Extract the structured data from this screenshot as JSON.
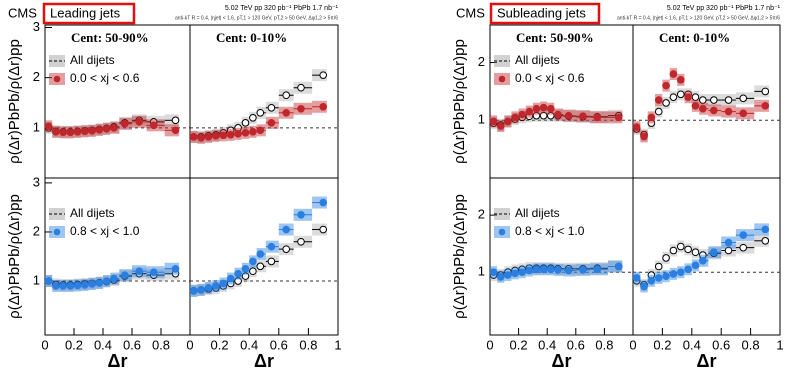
{
  "figures": [
    {
      "experiment": "CMS",
      "title": "Leading jets",
      "energy": "5.02 TeV   pp 320 pb⁻¹   PbPb 1.7 nb⁻¹",
      "selection": "anti-kT R = 0.4, |ηjet| < 1.6, pT,1 > 120 GeV, pT,2 > 50 GeV, Δφ1,2 > 5π/6"
    },
    {
      "experiment": "CMS",
      "title": "Subleading jets",
      "energy": "5.02 TeV   pp 320 pb⁻¹   PbPb 1.7 nb⁻¹",
      "selection": "anti-kT R = 0.4, |ηjet| < 1.6, pT,1 > 120 GeV, pT,2 > 50 GeV, Δφ1,2 > 5π/6"
    }
  ],
  "chart_data": [
    {
      "type": "scatter",
      "title": "Cent: 50-90%",
      "ylabel": "ρ(Δr)PbPb/ρ(Δr)pp",
      "legend": true,
      "reference": 1,
      "xlim": [
        0,
        1
      ],
      "ylim": [
        0,
        3.05
      ],
      "yticks": [
        1,
        2,
        3
      ],
      "x": [
        0.025,
        0.075,
        0.125,
        0.175,
        0.225,
        0.275,
        0.325,
        0.375,
        0.425,
        0.475,
        0.55,
        0.65,
        0.75,
        0.9
      ],
      "series": [
        {
          "name": "All dijets",
          "color": "#999999",
          "values": [
            1.0,
            0.93,
            0.92,
            0.92,
            0.93,
            0.94,
            0.95,
            0.97,
            0.99,
            1.02,
            1.1,
            1.15,
            1.12,
            1.15
          ]
        },
        {
          "name": "0.0 < xj < 0.6",
          "color": "#c0272d",
          "values": [
            1.03,
            0.92,
            0.91,
            0.91,
            0.92,
            0.93,
            0.94,
            0.96,
            0.98,
            1.0,
            1.08,
            1.12,
            1.05,
            0.95
          ]
        }
      ]
    },
    {
      "type": "scatter",
      "title": "Cent: 0-10%",
      "legend": false,
      "reference": 1,
      "xlim": [
        0,
        1
      ],
      "ylim": [
        0,
        3.05
      ],
      "x": [
        0.025,
        0.075,
        0.125,
        0.175,
        0.225,
        0.275,
        0.325,
        0.375,
        0.425,
        0.475,
        0.55,
        0.65,
        0.75,
        0.9
      ],
      "series": [
        {
          "name": "All dijets",
          "color": "#999999",
          "values": [
            0.82,
            0.82,
            0.84,
            0.86,
            0.9,
            0.95,
            1.0,
            1.1,
            1.2,
            1.3,
            1.4,
            1.65,
            1.8,
            2.05
          ]
        },
        {
          "name": "0.0 < xj < 0.6",
          "color": "#c0272d",
          "values": [
            0.82,
            0.8,
            0.82,
            0.84,
            0.85,
            0.86,
            0.88,
            0.9,
            0.92,
            0.95,
            1.1,
            1.3,
            1.38,
            1.42
          ]
        }
      ]
    },
    {
      "type": "scatter",
      "ylabel": "ρ(Δr)PbPb/ρ(Δr)pp",
      "xlabel": "Δr",
      "legend": true,
      "reference": 1,
      "xlim": [
        0,
        1
      ],
      "ylim": [
        -0.1,
        3.1
      ],
      "yticks": [
        1,
        2,
        3
      ],
      "xticks": [
        0,
        0.2,
        0.4,
        0.6,
        0.8
      ],
      "x": [
        0.025,
        0.075,
        0.125,
        0.175,
        0.225,
        0.275,
        0.325,
        0.375,
        0.425,
        0.475,
        0.55,
        0.65,
        0.75,
        0.9
      ],
      "series": [
        {
          "name": "All dijets",
          "color": "#999999",
          "values": [
            1.0,
            0.93,
            0.92,
            0.92,
            0.93,
            0.94,
            0.95,
            0.97,
            0.99,
            1.02,
            1.1,
            1.15,
            1.12,
            1.15
          ]
        },
        {
          "name": "0.8 < xj < 1.0",
          "color": "#2a7fe0",
          "values": [
            1.0,
            0.9,
            0.9,
            0.9,
            0.91,
            0.92,
            0.94,
            0.96,
            1.0,
            1.05,
            1.12,
            1.2,
            1.18,
            1.25
          ]
        }
      ]
    },
    {
      "type": "scatter",
      "xlabel": "Δr",
      "legend": false,
      "reference": 1,
      "xlim": [
        0,
        1
      ],
      "ylim": [
        -0.1,
        3.1
      ],
      "xticks": [
        0,
        0.2,
        0.4,
        0.6,
        0.8,
        1
      ],
      "x": [
        0.025,
        0.075,
        0.125,
        0.175,
        0.225,
        0.275,
        0.325,
        0.375,
        0.425,
        0.475,
        0.55,
        0.65,
        0.75,
        0.9
      ],
      "series": [
        {
          "name": "All dijets",
          "color": "#999999",
          "values": [
            0.8,
            0.82,
            0.84,
            0.86,
            0.9,
            0.95,
            1.0,
            1.1,
            1.2,
            1.3,
            1.4,
            1.65,
            1.8,
            2.05
          ]
        },
        {
          "name": "0.8 < xj < 1.0",
          "color": "#2a7fe0",
          "values": [
            0.8,
            0.82,
            0.86,
            0.9,
            0.95,
            1.05,
            1.15,
            1.25,
            1.4,
            1.55,
            1.7,
            2.05,
            2.35,
            2.6
          ]
        }
      ]
    },
    {
      "type": "scatter",
      "title": "Cent: 50-90%",
      "ylabel": "ρ(Δr)PbPb/ρ(Δr)pp",
      "legend": true,
      "reference": 1,
      "xlim": [
        0,
        1
      ],
      "ylim": [
        0,
        2.65
      ],
      "yticks": [
        1,
        2
      ],
      "x": [
        0.025,
        0.075,
        0.125,
        0.175,
        0.225,
        0.275,
        0.325,
        0.375,
        0.425,
        0.475,
        0.55,
        0.65,
        0.75,
        0.9
      ],
      "series": [
        {
          "name": "All dijets",
          "color": "#999999",
          "values": [
            0.95,
            0.92,
            0.98,
            1.02,
            1.05,
            1.07,
            1.08,
            1.08,
            1.08,
            1.08,
            1.07,
            1.06,
            1.06,
            1.08
          ]
        },
        {
          "name": "0.0 < xj < 0.6",
          "color": "#c0272d",
          "values": [
            0.98,
            0.9,
            0.98,
            1.05,
            1.1,
            1.15,
            1.2,
            1.22,
            1.2,
            1.1,
            1.08,
            1.07,
            1.05,
            1.05
          ]
        }
      ]
    },
    {
      "type": "scatter",
      "title": "Cent: 0-10%",
      "legend": false,
      "reference": 1,
      "xlim": [
        0,
        1
      ],
      "ylim": [
        0,
        2.65
      ],
      "x": [
        0.025,
        0.075,
        0.125,
        0.175,
        0.225,
        0.275,
        0.325,
        0.375,
        0.425,
        0.475,
        0.55,
        0.65,
        0.75,
        0.9
      ],
      "series": [
        {
          "name": "All dijets",
          "color": "#999999",
          "values": [
            0.85,
            0.75,
            0.95,
            1.15,
            1.3,
            1.4,
            1.45,
            1.45,
            1.4,
            1.35,
            1.35,
            1.35,
            1.38,
            1.5
          ]
        },
        {
          "name": "0.0 < xj < 0.6",
          "color": "#c0272d",
          "values": [
            0.88,
            0.72,
            1.05,
            1.35,
            1.6,
            1.8,
            1.7,
            1.4,
            1.25,
            1.2,
            1.17,
            1.15,
            1.12,
            1.25
          ]
        }
      ]
    },
    {
      "type": "scatter",
      "ylabel": "ρ(Δr)PbPb/ρ(Δr)pp",
      "xlabel": "Δr",
      "legend": true,
      "reference": 1,
      "xlim": [
        0,
        1
      ],
      "ylim": [
        -0.1,
        2.65
      ],
      "yticks": [
        1,
        2
      ],
      "xticks": [
        0,
        0.2,
        0.4,
        0.6,
        0.8
      ],
      "x": [
        0.025,
        0.075,
        0.125,
        0.175,
        0.225,
        0.275,
        0.325,
        0.375,
        0.425,
        0.475,
        0.55,
        0.65,
        0.75,
        0.9
      ],
      "series": [
        {
          "name": "All dijets",
          "color": "#999999",
          "values": [
            0.95,
            0.95,
            1.0,
            1.03,
            1.05,
            1.07,
            1.07,
            1.07,
            1.07,
            1.06,
            1.06,
            1.06,
            1.07,
            1.1
          ]
        },
        {
          "name": "0.8 < xj < 1.0",
          "color": "#2a7fe0",
          "values": [
            1.0,
            0.92,
            0.95,
            0.98,
            1.0,
            1.03,
            1.05,
            1.05,
            1.05,
            1.04,
            1.03,
            1.04,
            1.05,
            1.1
          ]
        }
      ]
    },
    {
      "type": "scatter",
      "xlabel": "Δr",
      "legend": false,
      "reference": 1,
      "xlim": [
        0,
        1
      ],
      "ylim": [
        -0.1,
        2.65
      ],
      "xticks": [
        0,
        0.2,
        0.4,
        0.6,
        0.8,
        1
      ],
      "x": [
        0.025,
        0.075,
        0.125,
        0.175,
        0.225,
        0.275,
        0.325,
        0.375,
        0.425,
        0.475,
        0.55,
        0.65,
        0.75,
        0.9
      ],
      "series": [
        {
          "name": "All dijets",
          "color": "#999999",
          "values": [
            0.85,
            0.78,
            0.95,
            1.1,
            1.25,
            1.38,
            1.45,
            1.4,
            1.35,
            1.3,
            1.33,
            1.38,
            1.43,
            1.55
          ]
        },
        {
          "name": "0.8 < xj < 1.0",
          "color": "#2a7fe0",
          "values": [
            0.9,
            0.75,
            0.85,
            0.9,
            0.93,
            0.97,
            1.0,
            1.05,
            1.12,
            1.2,
            1.35,
            1.52,
            1.65,
            1.75
          ]
        }
      ]
    }
  ]
}
